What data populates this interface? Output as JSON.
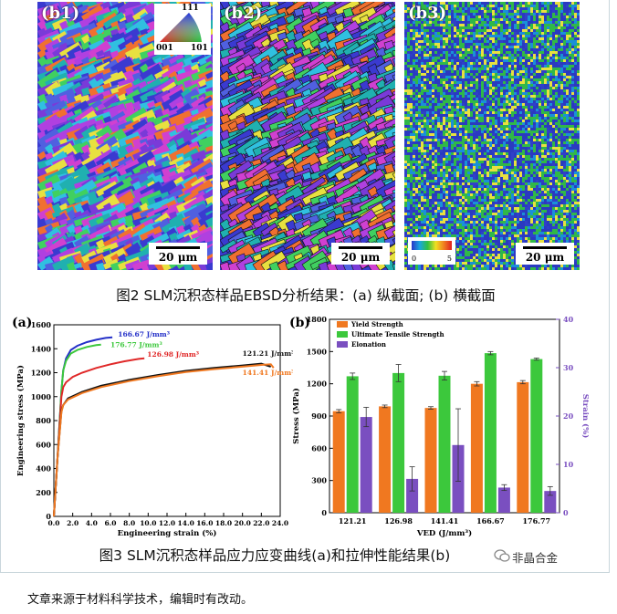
{
  "figure2": {
    "panels": [
      {
        "label": "(b1)",
        "scale": "20 μm"
      },
      {
        "label": "(b2)",
        "scale": "20 μm"
      },
      {
        "label": "(b3)",
        "scale": "20 μm"
      }
    ],
    "ipf_key": {
      "top": "111",
      "left": "001",
      "right": "101"
    },
    "kam_scale": {
      "min": "0",
      "max": "5"
    },
    "caption": "图2 SLM沉积态样品EBSD分析结果：(a) 纵截面; (b) 横截面"
  },
  "figure3": {
    "caption": "图3 SLM沉积态样品应力应变曲线(a)和拉伸性能结果(b)"
  },
  "source_note": "文章来源于材料科学技术，编辑时有改动。",
  "watermark": "非晶合金",
  "colors": {
    "orange": "#f07820",
    "green": "#3cc83c",
    "purple": "#7a4fc0",
    "red": "#e02828",
    "blue": "#2430c8",
    "black": "#111111"
  },
  "chart_data": [
    {
      "type": "line",
      "panel_label": "(a)",
      "xlabel": "Engineering strain (%)",
      "ylabel": "Engineering stress (MPa)",
      "xlim": [
        0,
        24
      ],
      "ylim": [
        0,
        1600
      ],
      "xticks": [
        "0.0",
        "2.0",
        "4.0",
        "6.0",
        "8.0",
        "10.0",
        "12.0",
        "14.0",
        "16.0",
        "18.0",
        "20.0",
        "22.0",
        "24.0"
      ],
      "yticks": [
        "0",
        "200",
        "400",
        "600",
        "800",
        "1000",
        "1200",
        "1400",
        "1600"
      ],
      "series": [
        {
          "name": "166.67 J/mm³",
          "color": "#2430c8",
          "x": [
            0,
            0.4,
            0.8,
            1.0,
            1.3,
            1.8,
            2.5,
            3.5,
            4.5,
            5.5,
            6.2
          ],
          "y": [
            0,
            500,
            1050,
            1220,
            1320,
            1390,
            1425,
            1455,
            1475,
            1490,
            1495
          ]
        },
        {
          "name": "176.77 J/mm³",
          "color": "#3cc83c",
          "x": [
            0,
            0.4,
            0.8,
            1.0,
            1.3,
            1.8,
            2.5,
            3.5,
            4.5,
            5.0
          ],
          "y": [
            0,
            500,
            1050,
            1220,
            1300,
            1360,
            1390,
            1415,
            1430,
            1435
          ]
        },
        {
          "name": "126.98 J/mm³",
          "color": "#e02828",
          "x": [
            0,
            0.4,
            0.8,
            1.0,
            1.3,
            2.0,
            3.0,
            4.5,
            6.0,
            7.5,
            9.0,
            9.6
          ],
          "y": [
            0,
            500,
            1000,
            1080,
            1120,
            1165,
            1200,
            1240,
            1270,
            1295,
            1315,
            1320
          ]
        },
        {
          "name": "121.21 J/mm³",
          "color": "#111111",
          "x": [
            0,
            0.4,
            0.8,
            1.0,
            1.5,
            3,
            5,
            8,
            11,
            14,
            17,
            20,
            22,
            23
          ],
          "y": [
            0,
            500,
            880,
            930,
            985,
            1040,
            1090,
            1140,
            1180,
            1215,
            1240,
            1260,
            1275,
            1250
          ]
        },
        {
          "name": "141.41 J/mm³",
          "color": "#f07820",
          "x": [
            0,
            0.4,
            0.8,
            1.0,
            1.5,
            3,
            5,
            8,
            11,
            14,
            17,
            20,
            22,
            23,
            23.3
          ],
          "y": [
            0,
            500,
            870,
            930,
            975,
            1030,
            1080,
            1130,
            1170,
            1205,
            1230,
            1250,
            1265,
            1270,
            1240
          ]
        }
      ]
    },
    {
      "type": "bar",
      "panel_label": "(b)",
      "xlabel": "VED (J/mm³)",
      "ylabel": "Stress (MPa)",
      "y2label": "Strain (%)",
      "categories": [
        "121.21",
        "126.98",
        "141.41",
        "166.67",
        "176.77"
      ],
      "ylim": [
        0,
        1800
      ],
      "y2lim": [
        0,
        40
      ],
      "yticks": [
        "0",
        "300",
        "600",
        "900",
        "1200",
        "1500",
        "1800"
      ],
      "y2ticks": [
        "0",
        "10",
        "20",
        "30",
        "40"
      ],
      "legend_position": "top-left",
      "series": [
        {
          "name": "Yield Strength",
          "axis": "left",
          "color": "#f07820",
          "values": [
            945,
            990,
            975,
            1200,
            1215
          ],
          "errors": [
            15,
            12,
            12,
            20,
            15
          ]
        },
        {
          "name": "Ultimate Tensile Strength",
          "axis": "left",
          "color": "#3cc83c",
          "values": [
            1270,
            1300,
            1275,
            1485,
            1430
          ],
          "errors": [
            30,
            80,
            40,
            15,
            10
          ]
        },
        {
          "name": "Elonation",
          "axis": "right",
          "color": "#7a4fc0",
          "values": [
            19.8,
            7.0,
            14.0,
            5.2,
            4.5
          ],
          "errors": [
            2.0,
            2.5,
            7.5,
            0.6,
            0.9
          ]
        }
      ]
    }
  ]
}
